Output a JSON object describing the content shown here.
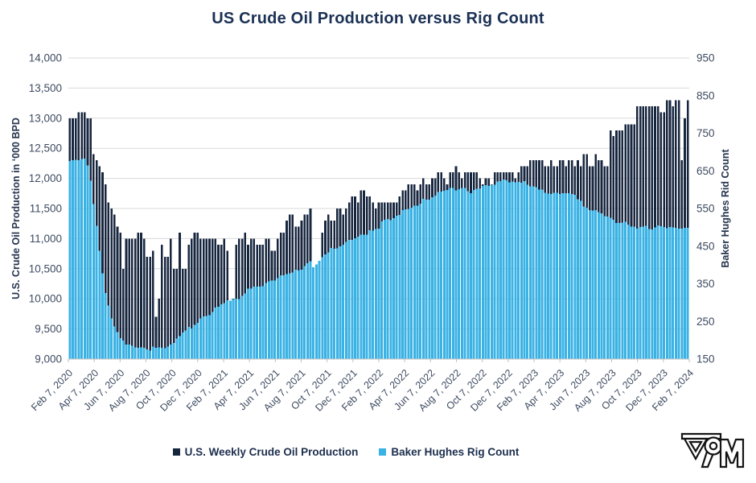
{
  "chart_data": {
    "type": "bar",
    "title": "US Crude Oil Production versus Rig Count",
    "grid": "horizontal",
    "legend_position": "bottom",
    "left_axis": {
      "label": "U.S. Crude Oil Production in ‘000 BPD",
      "min": 9000,
      "max": 14000,
      "step": 500,
      "tick_labels": [
        "14,000",
        "13,500",
        "13,000",
        "12,500",
        "12,000",
        "11,500",
        "11,000",
        "10,500",
        "10,000",
        "9,500",
        "9,000"
      ]
    },
    "right_axis": {
      "label": "Baker Hughes Rid Count",
      "min": 150,
      "max": 950,
      "step": 100,
      "tick_labels": [
        "950",
        "850",
        "750",
        "650",
        "550",
        "450",
        "350",
        "250",
        "150"
      ]
    },
    "x_tick_labels": [
      "Feb 7, 2020",
      "Apr 7, 2020",
      "Jun 7, 2020",
      "Aug 7, 2020",
      "Oct 7, 2020",
      "Dec 7, 2020",
      "Feb 7, 2021",
      "Apr 7, 2021",
      "Jun 7, 2021",
      "Aug 7, 2021",
      "Oct 7, 2021",
      "Dec 7, 2021",
      "Feb 7, 2022",
      "Apr 7, 2022",
      "Jun 7, 2022",
      "Aug 7, 2022",
      "Oct 7, 2022",
      "Dec 7, 2022",
      "Feb 7, 2023",
      "Apr 7, 2023",
      "Jun 7, 2023",
      "Aug 7, 2023",
      "Oct 7, 2023",
      "Dec 7, 2023",
      "Feb 7, 2024"
    ],
    "x_frequency": "weekly",
    "series": [
      {
        "name": "U.S. Weekly Crude Oil Production",
        "axis": "left",
        "color": "#17263f",
        "values": [
          13000,
          13000,
          13000,
          13100,
          13100,
          13100,
          13000,
          13000,
          12400,
          12300,
          12200,
          12100,
          11900,
          11600,
          11500,
          11400,
          11200,
          11100,
          10500,
          11000,
          11000,
          11000,
          11000,
          11100,
          11100,
          11000,
          10700,
          10700,
          10800,
          9700,
          10000,
          10900,
          10700,
          10700,
          11000,
          10500,
          10500,
          11100,
          10500,
          10500,
          10900,
          11000,
          11100,
          11100,
          11000,
          11000,
          11000,
          11000,
          11000,
          11000,
          10900,
          10900,
          11000,
          10800,
          9700,
          10000,
          10900,
          11000,
          11000,
          11100,
          10900,
          11000,
          11000,
          10900,
          10900,
          10900,
          11000,
          11000,
          10800,
          10800,
          11000,
          11100,
          11100,
          11300,
          11400,
          11400,
          11200,
          11200,
          11300,
          11400,
          11400,
          11500,
          10000,
          10100,
          10600,
          11100,
          11300,
          11400,
          11300,
          11300,
          11500,
          11500,
          11400,
          11500,
          11600,
          11700,
          11700,
          11600,
          11800,
          11800,
          11700,
          11700,
          11600,
          11500,
          11600,
          11600,
          11600,
          11600,
          11600,
          11600,
          11600,
          11700,
          11800,
          11800,
          11900,
          11900,
          11900,
          11800,
          11900,
          12000,
          11900,
          11900,
          12000,
          12000,
          12100,
          12100,
          12000,
          11900,
          12100,
          12100,
          12200,
          12100,
          12000,
          12100,
          12100,
          12100,
          12100,
          12100,
          12000,
          11900,
          12000,
          12000,
          11900,
          12100,
          12100,
          12100,
          12100,
          12100,
          12100,
          12100,
          12000,
          12100,
          12200,
          12200,
          12200,
          12300,
          12300,
          12300,
          12300,
          12300,
          12200,
          12200,
          12300,
          12200,
          12200,
          12300,
          12300,
          12200,
          12300,
          12300,
          12200,
          12300,
          12200,
          12400,
          12400,
          12200,
          12200,
          12400,
          12300,
          12300,
          12200,
          12200,
          12800,
          12700,
          12800,
          12800,
          12800,
          12900,
          12900,
          12900,
          12900,
          13200,
          13200,
          13200,
          13200,
          13200,
          13200,
          13200,
          13200,
          13100,
          13100,
          13300,
          13300,
          13200,
          13300,
          13300,
          12300,
          13000,
          13300
        ]
      },
      {
        "name": "Baker Hughes Rig Count",
        "axis": "right",
        "color": "#3ab2e4",
        "values": [
          676,
          678,
          679,
          678,
          682,
          683,
          664,
          624,
          562,
          504,
          438,
          378,
          325,
          292,
          258,
          237,
          222,
          206,
          199,
          189,
          188,
          185,
          181,
          180,
          181,
          180,
          176,
          172,
          183,
          180,
          181,
          180,
          179,
          183,
          189,
          193,
          205,
          211,
          221,
          226,
          236,
          231,
          241,
          246,
          258,
          263,
          264,
          267,
          275,
          287,
          289,
          295,
          299,
          306,
          305,
          309,
          310,
          309,
          318,
          324,
          337,
          337,
          343,
          342,
          343,
          344,
          352,
          356,
          359,
          359,
          365,
          372,
          372,
          376,
          378,
          380,
          387,
          385,
          387,
          397,
          405,
          410,
          394,
          401,
          411,
          421,
          428,
          433,
          445,
          443,
          444,
          450,
          454,
          461,
          467,
          467,
          471,
          475,
          480,
          480,
          481,
          492,
          491,
          495,
          497,
          516,
          520,
          522,
          519,
          524,
          531,
          533,
          546,
          548,
          549,
          552,
          557,
          557,
          563,
          576,
          574,
          574,
          580,
          584,
          594,
          595,
          597,
          599,
          605,
          605,
          598,
          601,
          605,
          605,
          596,
          591,
          599,
          602,
          604,
          610,
          612,
          610,
          613,
          613,
          622,
          623,
          627,
          625,
          620,
          622,
          620,
          621,
          618,
          623,
          613,
          609,
          609,
          607,
          600,
          600,
          592,
          590,
          589,
          592,
          592,
          588,
          591,
          591,
          591,
          588,
          586,
          575,
          570,
          555,
          552,
          546,
          545,
          546,
          540,
          537,
          530,
          529,
          525,
          520,
          512,
          512,
          513,
          515,
          507,
          502,
          502,
          497,
          501,
          502,
          504,
          496,
          494,
          500,
          505,
          503,
          501,
          498,
          501,
          500,
          499,
          497,
          497,
          499,
          499
        ]
      }
    ]
  },
  "colors": {
    "title": "#1b3155",
    "axis_title": "#25344d",
    "tick_text": "#3e4b61",
    "gridline": "#d9d9d9",
    "axis_line": "#bfbfbf",
    "background": "#ffffff"
  },
  "logo": {
    "icon": "brand-monogram-logo"
  }
}
